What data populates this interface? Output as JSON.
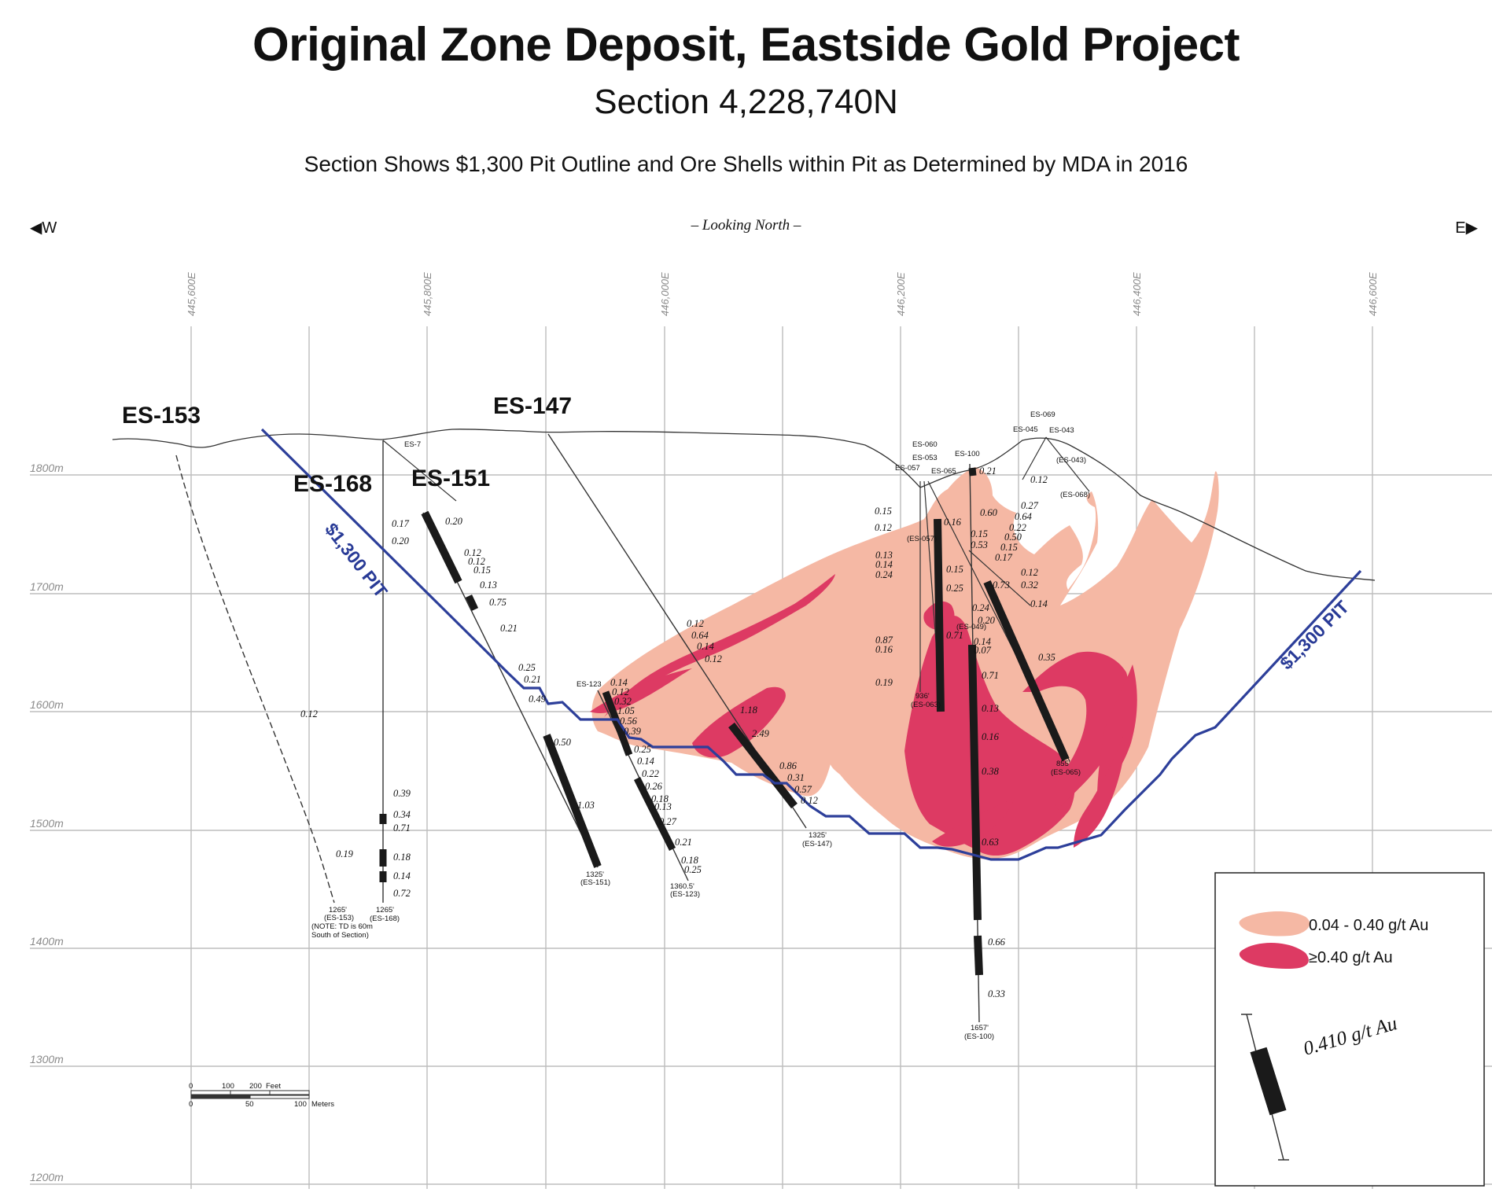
{
  "title": "Original Zone Deposit, Eastside Gold Project",
  "subtitle": "Section 4,228,740N",
  "note": "Section Shows $1,300 Pit Outline and Ore Shells within Pit as Determined by MDA in 2016",
  "looking": "– Looking North –",
  "directions": {
    "west": "W",
    "east": "E"
  },
  "elevation_ticks": [
    "1800m",
    "1700m",
    "1600m",
    "1500m",
    "1400m",
    "1300m",
    "1200m"
  ],
  "easting_ticks": [
    "445,600E",
    "445,800E",
    "446,000E",
    "446,200E",
    "446,400E",
    "446,600E"
  ],
  "hole_labels": [
    "ES-153",
    "ES-168",
    "ES-151",
    "ES-147"
  ],
  "small_hole_labels": [
    "ES-7",
    "ES-060",
    "ES-053",
    "ES-057",
    "ES-065",
    "ES-100",
    "ES-069",
    "ES-045",
    "ES-043",
    "ES-123"
  ],
  "pit_label": "$1,300 PIT",
  "hole_ends": {
    "es153": [
      "1265'",
      "(ES-153)",
      "(NOTE: TD is 60m",
      "South of Section)"
    ],
    "es168": [
      "1265'",
      "(ES-168)"
    ],
    "es151": [
      "1325'",
      "(ES-151)"
    ],
    "es123": [
      "1360.5'",
      "(ES-123)"
    ],
    "es147": [
      "1325'",
      "(ES-147)"
    ],
    "es100": [
      "1657'",
      "(ES-100)"
    ],
    "es063": [
      "936'",
      "(ES-063)"
    ],
    "es065": [
      "855'",
      "(ES-065)"
    ],
    "es057": "(ES-057)",
    "es049": "(ES-049)",
    "es043": "(ES-043)",
    "es068": "(ES-068)"
  },
  "assays": {
    "es153": [
      "0.12",
      "0.19"
    ],
    "es168": [
      "0.17",
      "0.20",
      "0.39",
      "0.34",
      "0.71",
      "0.18",
      "0.14",
      "0.72"
    ],
    "es151": [
      "0.20",
      "0.12",
      "0.12",
      "0.15",
      "0.13",
      "0.75",
      "0.21",
      "0.25",
      "0.21",
      "0.49",
      "0.50",
      "1.03"
    ],
    "es123": [
      "0.14",
      "0.12",
      "0.32",
      "1.05",
      "0.56",
      "0.39",
      "0.25",
      "0.14",
      "0.22",
      "0.26",
      "0.18",
      "0.13",
      "0.27",
      "0.21",
      "0.18",
      "0.25"
    ],
    "es147": [
      "0.12",
      "0.64",
      "0.14",
      "0.12",
      "1.18",
      "2.49",
      "0.86",
      "0.31",
      "0.57",
      "0.12"
    ],
    "es063": [
      "0.15",
      "0.12",
      "0.13",
      "0.14",
      "0.24",
      "0.87",
      "0.16",
      "0.19"
    ],
    "es100": [
      "0.21",
      "0.60",
      "0.15",
      "0.53",
      "0.16",
      "0.15",
      "0.25",
      "0.71",
      "0.14",
      "0.07",
      "0.71",
      "0.13",
      "0.16",
      "0.38",
      "0.63",
      "0.66",
      "0.33"
    ],
    "es065": [
      "0.12",
      "0.27",
      "0.64",
      "0.22",
      "0.50",
      "0.15",
      "0.17",
      "0.12",
      "0.32",
      "0.14",
      "0.73",
      "0.24",
      "0.20",
      "0.35"
    ]
  },
  "scale_bar": {
    "feet": [
      "0",
      "100",
      "200",
      "Feet"
    ],
    "meters": [
      "0",
      "50",
      "100",
      "Meters"
    ]
  },
  "legend": {
    "low_grade": "0.04 - 0.40 g/t Au",
    "high_grade": "≥0.40 g/t Au",
    "sample_value": "0.410 g/t Au"
  },
  "colors": {
    "low_grade_shell": "#f5b8a4",
    "high_grade_shell": "#dd3a63",
    "pit_outline": "#2d3f9a",
    "drill_intercept": "#1a1a1a"
  }
}
